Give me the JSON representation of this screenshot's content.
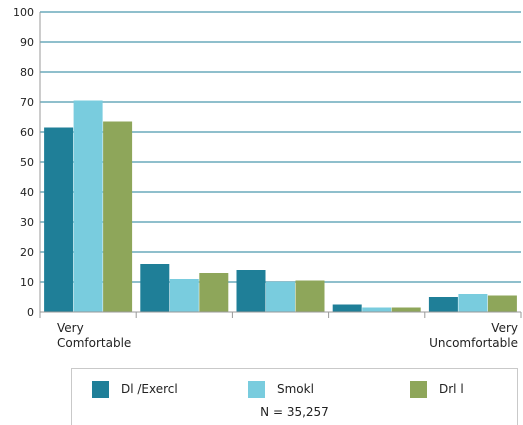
{
  "chart_data": {
    "type": "bar",
    "categories": [
      "Very\nComfortable",
      "",
      "",
      "",
      "Very\nUncomfortable"
    ],
    "series": [
      {
        "name": "Dl   /Exercl",
        "color": "#1f7f98",
        "values": [
          61.5,
          16,
          14,
          2.5,
          5
        ]
      },
      {
        "name": "Smokl",
        "color": "#79ccde",
        "values": [
          70.5,
          11,
          10,
          1.5,
          6
        ]
      },
      {
        "name": "Drl    l",
        "color": "#8ea65a",
        "values": [
          63.5,
          13,
          10.5,
          1.5,
          5.5
        ]
      }
    ],
    "ylim": [
      0,
      100
    ],
    "yticks": [
      0,
      10,
      20,
      30,
      40,
      50,
      60,
      70,
      80,
      90,
      100
    ],
    "grid": true,
    "legend_position": "bottom",
    "note": "N = 35,257"
  }
}
